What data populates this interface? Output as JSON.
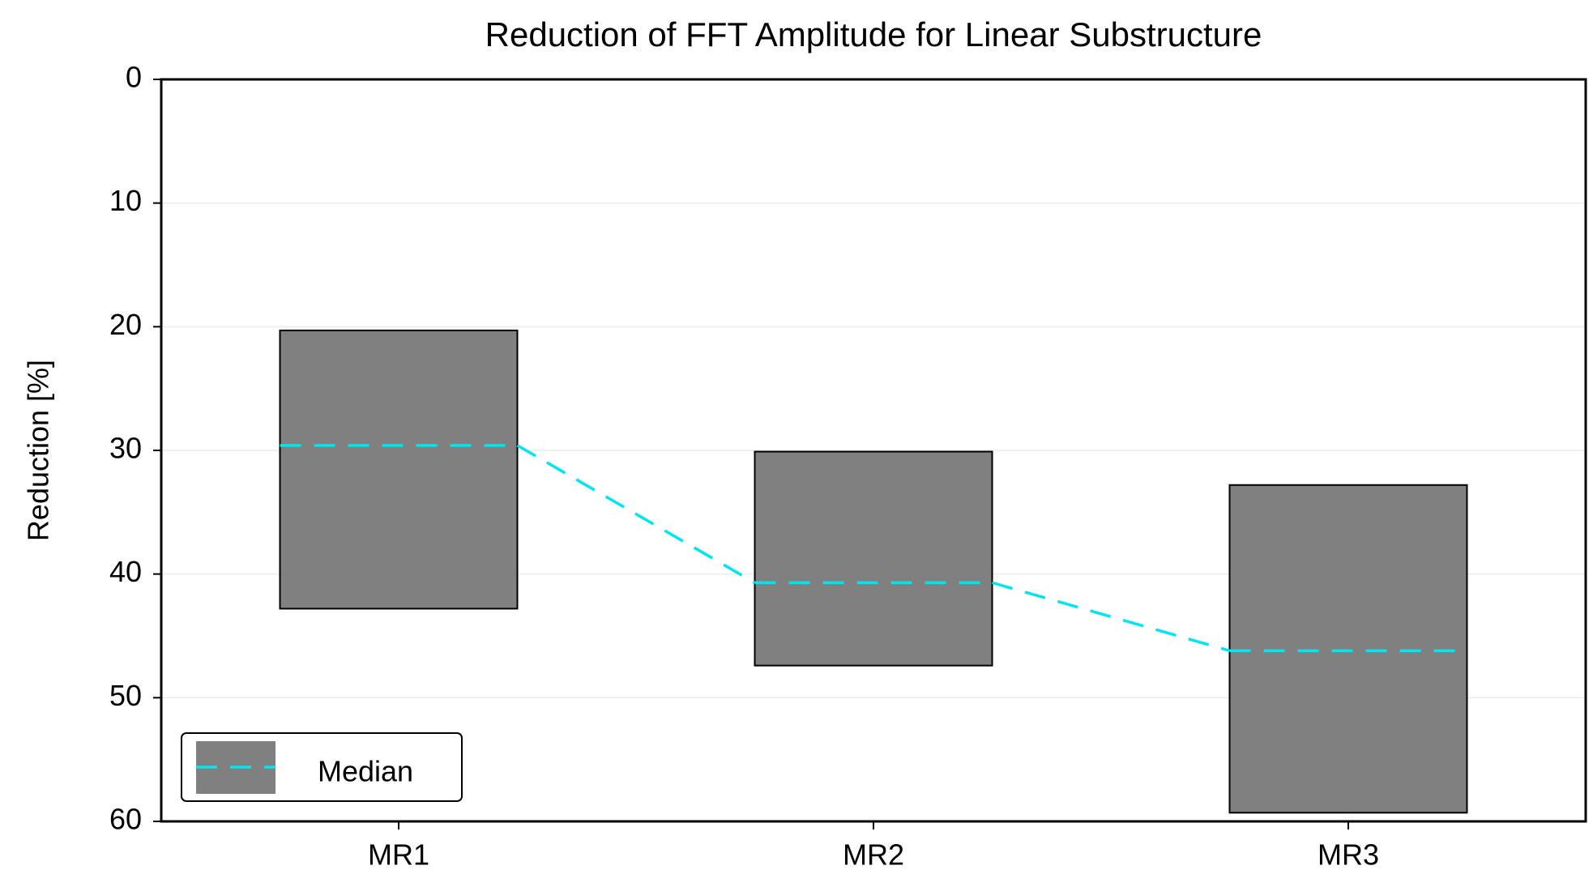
{
  "chart_data": {
    "type": "range",
    "title": "Reduction of FFT Amplitude for Linear Substructure",
    "y_label": "Reduction [%]",
    "categories": [
      "MR1",
      "MR2",
      "MR3"
    ],
    "low": [
      20.3,
      30.1,
      32.8
    ],
    "high": [
      42.8,
      47.4,
      59.3
    ],
    "range_color": "#808080",
    "series": [
      {
        "name": "Median",
        "color": "#00e5ee",
        "values": [
          29.6,
          40.7,
          46.2
        ]
      }
    ],
    "ylim": [
      0,
      60
    ],
    "yticks": [
      0,
      10,
      20,
      30,
      40,
      50,
      60
    ],
    "y_inverted": true,
    "grid": true,
    "legend": "lower left"
  }
}
